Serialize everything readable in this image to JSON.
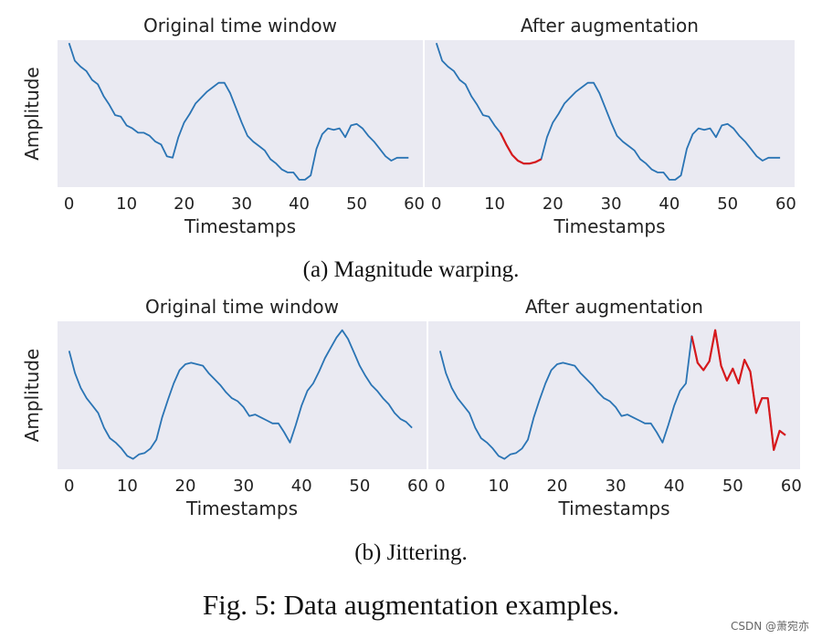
{
  "figure": {
    "caption": "Fig. 5: Data augmentation examples.",
    "watermark": "CSDN @萧宛亦"
  },
  "colors": {
    "panel_background": "#eaeaf2",
    "original_line": "#2a74b4",
    "augmented_segment": "#d7191c"
  },
  "chart_data": [
    {
      "type": "line",
      "group_caption": "(a) Magnitude warping.",
      "panel": "left",
      "title": "Original time window",
      "xlabel": "Timestamps",
      "ylabel": "Amplitude",
      "xlim": [
        -2,
        61.5
      ],
      "ylim": [
        0,
        100
      ],
      "xticks": [
        0,
        10,
        20,
        30,
        40,
        50,
        60
      ],
      "grid": false,
      "series": [
        {
          "x": [
            0,
            1,
            2,
            3,
            4,
            5,
            6,
            7,
            8,
            9,
            10,
            11,
            12,
            13,
            14,
            15,
            16,
            17,
            18,
            19,
            20,
            21,
            22,
            23,
            24,
            25,
            26,
            27,
            28,
            29,
            30,
            31,
            32,
            33,
            34,
            35,
            36,
            37,
            38,
            39,
            40,
            41,
            42,
            43,
            44,
            45,
            46,
            47,
            48,
            49,
            50,
            51,
            52,
            53,
            54,
            55,
            56,
            57,
            58,
            59
          ],
          "y": [
            98,
            86,
            82,
            79,
            73,
            70,
            62,
            56,
            49,
            48,
            42,
            40,
            37,
            37,
            35,
            31,
            29,
            21,
            20,
            34,
            44,
            50,
            57,
            61,
            65,
            68,
            71,
            71,
            64,
            54,
            44,
            35,
            31,
            28,
            25,
            19,
            16,
            12,
            10,
            10,
            5,
            5,
            8,
            26,
            36,
            40,
            39,
            40,
            34,
            42,
            43,
            40,
            35,
            31,
            26,
            21,
            18,
            20,
            20,
            20
          ]
        }
      ]
    },
    {
      "type": "line",
      "group_caption": "(a) Magnitude warping.",
      "panel": "right",
      "title": "After augmentation",
      "xlabel": "Timestamps",
      "ylabel": "",
      "xlim": [
        -2,
        61.5
      ],
      "ylim": [
        0,
        100
      ],
      "xticks": [
        0,
        10,
        20,
        30,
        40,
        50,
        60
      ],
      "grid": false,
      "highlight_range": [
        11,
        18
      ],
      "series": [
        {
          "x": [
            0,
            1,
            2,
            3,
            4,
            5,
            6,
            7,
            8,
            9,
            10,
            11,
            12,
            13,
            14,
            15,
            16,
            17,
            18,
            19,
            20,
            21,
            22,
            23,
            24,
            25,
            26,
            27,
            28,
            29,
            30,
            31,
            32,
            33,
            34,
            35,
            36,
            37,
            38,
            39,
            40,
            41,
            42,
            43,
            44,
            45,
            46,
            47,
            48,
            49,
            50,
            51,
            52,
            53,
            54,
            55,
            56,
            57,
            58,
            59
          ],
          "y": [
            98,
            86,
            82,
            79,
            73,
            70,
            62,
            56,
            49,
            48,
            42,
            37,
            29,
            22,
            18,
            16,
            16,
            17,
            19,
            34,
            44,
            50,
            57,
            61,
            65,
            68,
            71,
            71,
            64,
            54,
            44,
            35,
            31,
            28,
            25,
            19,
            16,
            12,
            10,
            10,
            5,
            5,
            8,
            26,
            36,
            40,
            39,
            40,
            34,
            42,
            43,
            40,
            35,
            31,
            26,
            21,
            18,
            20,
            20,
            20
          ]
        }
      ]
    },
    {
      "type": "line",
      "group_caption": "(b) Jittering.",
      "panel": "left",
      "title": "Original time window",
      "xlabel": "Timestamps",
      "ylabel": "Amplitude",
      "xlim": [
        -2,
        61.5
      ],
      "ylim": [
        0,
        100
      ],
      "xticks": [
        0,
        10,
        20,
        30,
        40,
        50,
        60
      ],
      "grid": false,
      "series": [
        {
          "x": [
            0,
            1,
            2,
            3,
            4,
            5,
            6,
            7,
            8,
            9,
            10,
            11,
            12,
            13,
            14,
            15,
            16,
            17,
            18,
            19,
            20,
            21,
            22,
            23,
            24,
            25,
            26,
            27,
            28,
            29,
            30,
            31,
            32,
            33,
            34,
            35,
            36,
            37,
            38,
            39,
            40,
            41,
            42,
            43,
            44,
            45,
            46,
            47,
            48,
            49,
            50,
            51,
            52,
            53,
            54,
            55,
            56,
            57,
            58,
            59
          ],
          "y": [
            80,
            65,
            55,
            48,
            43,
            38,
            28,
            21,
            18,
            14,
            9,
            7,
            10,
            11,
            14,
            20,
            35,
            47,
            58,
            67,
            71,
            72,
            71,
            70,
            65,
            61,
            57,
            52,
            48,
            46,
            42,
            36,
            37,
            35,
            33,
            31,
            31,
            25,
            18,
            30,
            43,
            53,
            58,
            66,
            75,
            82,
            89,
            94,
            88,
            79,
            70,
            63,
            57,
            53,
            48,
            44,
            38,
            34,
            32,
            28
          ]
        }
      ]
    },
    {
      "type": "line",
      "group_caption": "(b) Jittering.",
      "panel": "right",
      "title": "After augmentation",
      "xlabel": "Timestamps",
      "ylabel": "",
      "xlim": [
        -2,
        61.5
      ],
      "ylim": [
        0,
        100
      ],
      "xticks": [
        0,
        10,
        20,
        30,
        40,
        50,
        60
      ],
      "grid": false,
      "highlight_range": [
        43,
        59
      ],
      "series": [
        {
          "x": [
            0,
            1,
            2,
            3,
            4,
            5,
            6,
            7,
            8,
            9,
            10,
            11,
            12,
            13,
            14,
            15,
            16,
            17,
            18,
            19,
            20,
            21,
            22,
            23,
            24,
            25,
            26,
            27,
            28,
            29,
            30,
            31,
            32,
            33,
            34,
            35,
            36,
            37,
            38,
            39,
            40,
            41,
            42,
            43,
            44,
            45,
            46,
            47,
            48,
            49,
            50,
            51,
            52,
            53,
            54,
            55,
            56,
            57,
            58,
            59
          ],
          "y": [
            80,
            65,
            55,
            48,
            43,
            38,
            28,
            21,
            18,
            14,
            9,
            7,
            10,
            11,
            14,
            20,
            35,
            47,
            58,
            67,
            71,
            72,
            71,
            70,
            65,
            61,
            57,
            52,
            48,
            46,
            42,
            36,
            37,
            35,
            33,
            31,
            31,
            25,
            18,
            30,
            43,
            53,
            58,
            90,
            72,
            67,
            73,
            94,
            70,
            60,
            68,
            58,
            74,
            66,
            38,
            48,
            48,
            13,
            26,
            23
          ]
        }
      ]
    }
  ]
}
